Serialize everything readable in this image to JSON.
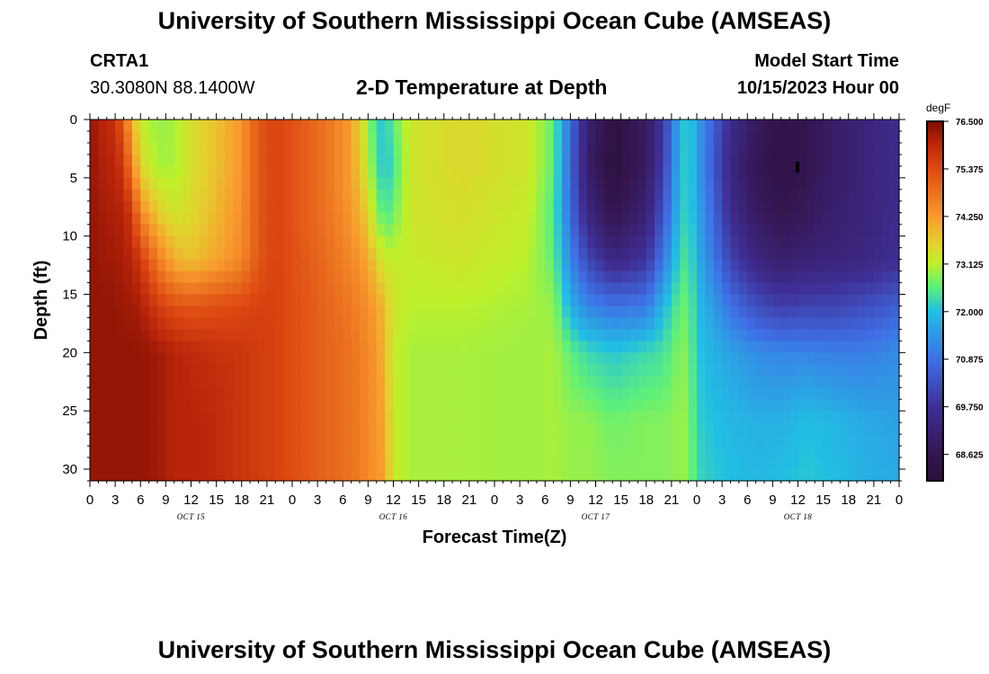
{
  "header": {
    "title": "University of Southern Mississippi Ocean Cube (AMSEAS)",
    "station": "CRTA1",
    "location": "30.3080N  88.1400W",
    "model_start_label": "Model Start Time",
    "model_start_value": "10/15/2023 Hour 00"
  },
  "footer": {
    "title": "University of Southern Mississippi Ocean Cube (AMSEAS)"
  },
  "chart_data": {
    "type": "heatmap",
    "title": "2-D Temperature at Depth",
    "xlabel": "Forecast Time(Z)",
    "ylabel": "Depth (ft)",
    "x_hours_range": [
      0,
      96
    ],
    "x_tick_hours": [
      0,
      3,
      6,
      9,
      12,
      15,
      18,
      21,
      24,
      27,
      30,
      33,
      36,
      39,
      42,
      45,
      48,
      51,
      54,
      57,
      60,
      63,
      66,
      69,
      72,
      75,
      78,
      81,
      84,
      87,
      90,
      93,
      96
    ],
    "x_tick_labels": [
      "0",
      "3",
      "6",
      "9",
      "12",
      "15",
      "18",
      "21",
      "0",
      "3",
      "6",
      "9",
      "12",
      "15",
      "18",
      "21",
      "0",
      "3",
      "6",
      "9",
      "12",
      "15",
      "18",
      "21",
      "0",
      "3",
      "6",
      "9",
      "12",
      "15",
      "18",
      "21",
      "0"
    ],
    "day_labels": [
      {
        "hour": 12,
        "text": "OCT 15"
      },
      {
        "hour": 36,
        "text": "OCT 16"
      },
      {
        "hour": 60,
        "text": "OCT 17"
      },
      {
        "hour": 84,
        "text": "OCT 18"
      }
    ],
    "y_range_ft": [
      0,
      31
    ],
    "y_ticks": [
      0,
      5,
      10,
      15,
      20,
      25,
      30
    ],
    "colorbar": {
      "units": "degF",
      "min": 68.0,
      "max": 76.5,
      "tick_values": [
        76.5,
        75.375,
        74.25,
        73.125,
        72.0,
        70.875,
        69.75,
        68.625
      ],
      "tick_labels": [
        "76.500",
        "75.375",
        "74.250",
        "73.125",
        "72.000",
        "70.875",
        "69.750",
        "68.625"
      ],
      "stops": [
        {
          "value": 68.0,
          "color": "#2a0f3a"
        },
        {
          "value": 68.625,
          "color": "#34154f"
        },
        {
          "value": 69.75,
          "color": "#3f2f96"
        },
        {
          "value": 70.875,
          "color": "#3f6fe6"
        },
        {
          "value": 72.0,
          "color": "#22bfe3"
        },
        {
          "value": 72.6,
          "color": "#5ff07a"
        },
        {
          "value": 73.125,
          "color": "#bff02a"
        },
        {
          "value": 73.6,
          "color": "#e3d22f"
        },
        {
          "value": 74.25,
          "color": "#f99a2e"
        },
        {
          "value": 75.375,
          "color": "#dd4a12"
        },
        {
          "value": 76.0,
          "color": "#b8240a"
        },
        {
          "value": 76.5,
          "color": "#7a0c03"
        }
      ]
    },
    "temperature_key_columns_degF": [
      {
        "hour": 0,
        "depth_0_to_31ft": [
          76.3,
          76.3,
          76.3,
          76.3,
          76.3,
          76.3,
          76.3,
          76.3
        ]
      },
      {
        "hour": 2,
        "depth_0_to_31ft": [
          75.9,
          76.0,
          76.1,
          76.2,
          76.3,
          76.3,
          76.3,
          76.3
        ]
      },
      {
        "hour": 3,
        "depth_0_to_31ft": [
          75.8,
          76.0,
          76.1,
          76.2,
          76.3,
          76.3,
          76.3,
          76.3
        ]
      },
      {
        "hour": 4,
        "depth_0_to_31ft": [
          75.0,
          75.6,
          76.0,
          76.1,
          76.2,
          76.3,
          76.3,
          76.3
        ]
      },
      {
        "hour": 5,
        "depth_0_to_31ft": [
          74.0,
          74.6,
          75.6,
          76.0,
          76.2,
          76.3,
          76.3,
          76.3
        ]
      },
      {
        "hour": 6,
        "depth_0_to_31ft": [
          73.2,
          73.5,
          74.5,
          75.6,
          76.1,
          76.3,
          76.3,
          76.3
        ]
      },
      {
        "hour": 8,
        "depth_0_to_31ft": [
          72.9,
          73.0,
          73.7,
          74.7,
          75.6,
          76.2,
          76.2,
          76.2
        ]
      },
      {
        "hour": 10,
        "depth_0_to_31ft": [
          73.0,
          73.0,
          73.3,
          74.0,
          75.3,
          76.0,
          76.0,
          76.0
        ]
      },
      {
        "hour": 12,
        "depth_0_to_31ft": [
          73.4,
          73.4,
          73.5,
          73.8,
          75.2,
          75.9,
          76.0,
          76.0
        ]
      },
      {
        "hour": 15,
        "depth_0_to_31ft": [
          73.8,
          73.8,
          73.9,
          74.1,
          75.3,
          75.8,
          75.9,
          75.9
        ]
      },
      {
        "hour": 18,
        "depth_0_to_31ft": [
          74.3,
          74.3,
          74.4,
          74.5,
          75.4,
          75.7,
          75.7,
          75.7
        ]
      },
      {
        "hour": 20,
        "depth_0_to_31ft": [
          75.2,
          75.2,
          75.2,
          75.2,
          75.5,
          75.6,
          75.6,
          75.6
        ]
      },
      {
        "hour": 22,
        "depth_0_to_31ft": [
          75.5,
          75.5,
          75.5,
          75.5,
          75.5,
          75.5,
          75.5,
          75.5
        ]
      },
      {
        "hour": 28,
        "depth_0_to_31ft": [
          74.8,
          74.8,
          74.8,
          74.9,
          75.0,
          75.0,
          75.0,
          75.0
        ]
      },
      {
        "hour": 31,
        "depth_0_to_31ft": [
          74.2,
          74.2,
          74.3,
          74.5,
          74.7,
          74.8,
          74.8,
          74.8
        ]
      },
      {
        "hour": 33,
        "depth_0_to_31ft": [
          73.0,
          73.2,
          73.6,
          74.1,
          74.4,
          74.5,
          74.5,
          74.5
        ]
      },
      {
        "hour": 34,
        "depth_0_to_31ft": [
          72.2,
          72.4,
          72.9,
          73.6,
          74.2,
          74.3,
          74.3,
          74.3
        ]
      },
      {
        "hour": 35,
        "depth_0_to_31ft": [
          72.1,
          72.0,
          72.4,
          73.2,
          73.8,
          73.9,
          74.1,
          74.2
        ]
      },
      {
        "hour": 36,
        "depth_0_to_31ft": [
          72.6,
          72.4,
          72.7,
          73.2,
          73.3,
          73.2,
          73.2,
          73.2
        ]
      },
      {
        "hour": 38,
        "depth_0_to_31ft": [
          73.3,
          73.3,
          73.3,
          73.2,
          73.1,
          73.0,
          73.0,
          73.0
        ]
      },
      {
        "hour": 44,
        "depth_0_to_31ft": [
          73.5,
          73.5,
          73.4,
          73.3,
          73.1,
          73.0,
          73.0,
          73.0
        ]
      },
      {
        "hour": 52,
        "depth_0_to_31ft": [
          73.3,
          73.3,
          73.2,
          73.1,
          73.0,
          72.95,
          72.95,
          72.95
        ]
      },
      {
        "hour": 55,
        "depth_0_to_31ft": [
          72.6,
          72.6,
          72.5,
          72.6,
          72.9,
          73.0,
          73.0,
          73.0
        ]
      },
      {
        "hour": 57,
        "depth_0_to_31ft": [
          70.8,
          70.7,
          70.8,
          71.2,
          71.8,
          72.6,
          72.9,
          72.9
        ]
      },
      {
        "hour": 59,
        "depth_0_to_31ft": [
          69.2,
          69.1,
          69.4,
          70.2,
          71.2,
          72.3,
          72.9,
          72.9
        ]
      },
      {
        "hour": 62,
        "depth_0_to_31ft": [
          68.3,
          68.2,
          68.6,
          69.4,
          70.9,
          72.1,
          72.7,
          72.8
        ]
      },
      {
        "hour": 66,
        "depth_0_to_31ft": [
          68.9,
          68.9,
          69.2,
          69.8,
          71.0,
          72.3,
          72.8,
          72.8
        ]
      },
      {
        "hour": 68,
        "depth_0_to_31ft": [
          69.9,
          70.0,
          70.4,
          71.0,
          71.9,
          72.4,
          72.8,
          72.8
        ]
      },
      {
        "hour": 70,
        "depth_0_to_31ft": [
          71.8,
          71.9,
          72.0,
          72.3,
          72.6,
          72.8,
          72.9,
          72.9
        ]
      },
      {
        "hour": 71,
        "depth_0_to_31ft": [
          72.3,
          72.3,
          72.3,
          72.5,
          72.7,
          72.8,
          72.9,
          72.9
        ]
      },
      {
        "hour": 72,
        "depth_0_to_31ft": [
          71.6,
          71.6,
          71.7,
          71.8,
          72.0,
          72.1,
          72.2,
          72.3
        ]
      },
      {
        "hour": 74,
        "depth_0_to_31ft": [
          70.6,
          70.5,
          70.7,
          71.0,
          71.5,
          71.8,
          72.0,
          72.1
        ]
      },
      {
        "hour": 76,
        "depth_0_to_31ft": [
          69.6,
          69.4,
          69.6,
          70.1,
          70.9,
          71.6,
          71.9,
          72.0
        ]
      },
      {
        "hour": 79,
        "depth_0_to_31ft": [
          68.9,
          68.7,
          68.9,
          69.4,
          70.3,
          71.3,
          71.8,
          71.9
        ]
      },
      {
        "hour": 82,
        "depth_0_to_31ft": [
          68.4,
          68.4,
          68.6,
          69.1,
          70.0,
          71.2,
          71.8,
          72.0
        ]
      },
      {
        "hour": 85,
        "depth_0_to_31ft": [
          68.6,
          68.6,
          68.8,
          69.2,
          70.1,
          71.2,
          72.0,
          72.1
        ]
      },
      {
        "hour": 88,
        "depth_0_to_31ft": [
          69.0,
          69.0,
          69.1,
          69.3,
          70.1,
          71.1,
          71.9,
          72.0
        ]
      },
      {
        "hour": 92,
        "depth_0_to_31ft": [
          69.3,
          69.3,
          69.3,
          69.4,
          70.3,
          71.1,
          71.7,
          71.8
        ]
      },
      {
        "hour": 96,
        "depth_0_to_31ft": [
          69.6,
          69.6,
          69.6,
          69.7,
          70.6,
          71.3,
          71.6,
          71.7
        ]
      }
    ],
    "key_depths_ft": [
      0,
      4,
      8,
      12,
      16,
      20,
      26,
      31
    ]
  }
}
